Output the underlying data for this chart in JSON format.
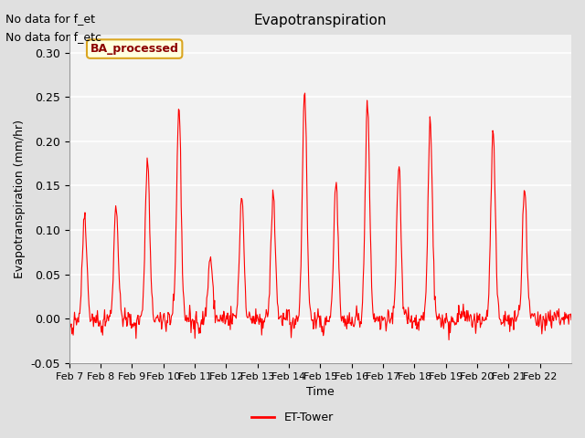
{
  "title": "Evapotranspiration",
  "ylabel": "Evapotranspiration (mm/hr)",
  "xlabel": "Time",
  "top_left_text_1": "No data for f_et",
  "top_left_text_2": "No data for f_etc",
  "legend_label": "ET-Tower",
  "legend_box_label": "BA_processed",
  "ylim": [
    -0.05,
    0.32
  ],
  "yticks": [
    -0.05,
    0.0,
    0.05,
    0.1,
    0.15,
    0.2,
    0.25,
    0.3
  ],
  "ytick_labels": [
    "-0.05",
    "0.00",
    "0.05",
    "0.10",
    "0.15",
    "0.20",
    "0.25",
    "0.30"
  ],
  "line_color": "#ff0000",
  "fig_bg_color": "#e0e0e0",
  "plot_bg_color": "#f2f2f2",
  "xtick_labels": [
    "Feb 7",
    "Feb 8",
    "Feb 9",
    "Feb 10",
    "Feb 11",
    "Feb 12",
    "Feb 13",
    "Feb 14",
    "Feb 15",
    "Feb 16",
    "Feb 17",
    "Feb 18",
    "Feb 19",
    "Feb 20",
    "Feb 21",
    "Feb 22"
  ],
  "peaks": [
    0.12,
    0.13,
    0.18,
    0.24,
    0.07,
    0.14,
    0.14,
    0.26,
    0.155,
    0.245,
    0.175,
    0.225,
    0.005,
    0.21,
    0.145,
    0.005
  ],
  "n_days": 16,
  "pts_per_day": 48
}
